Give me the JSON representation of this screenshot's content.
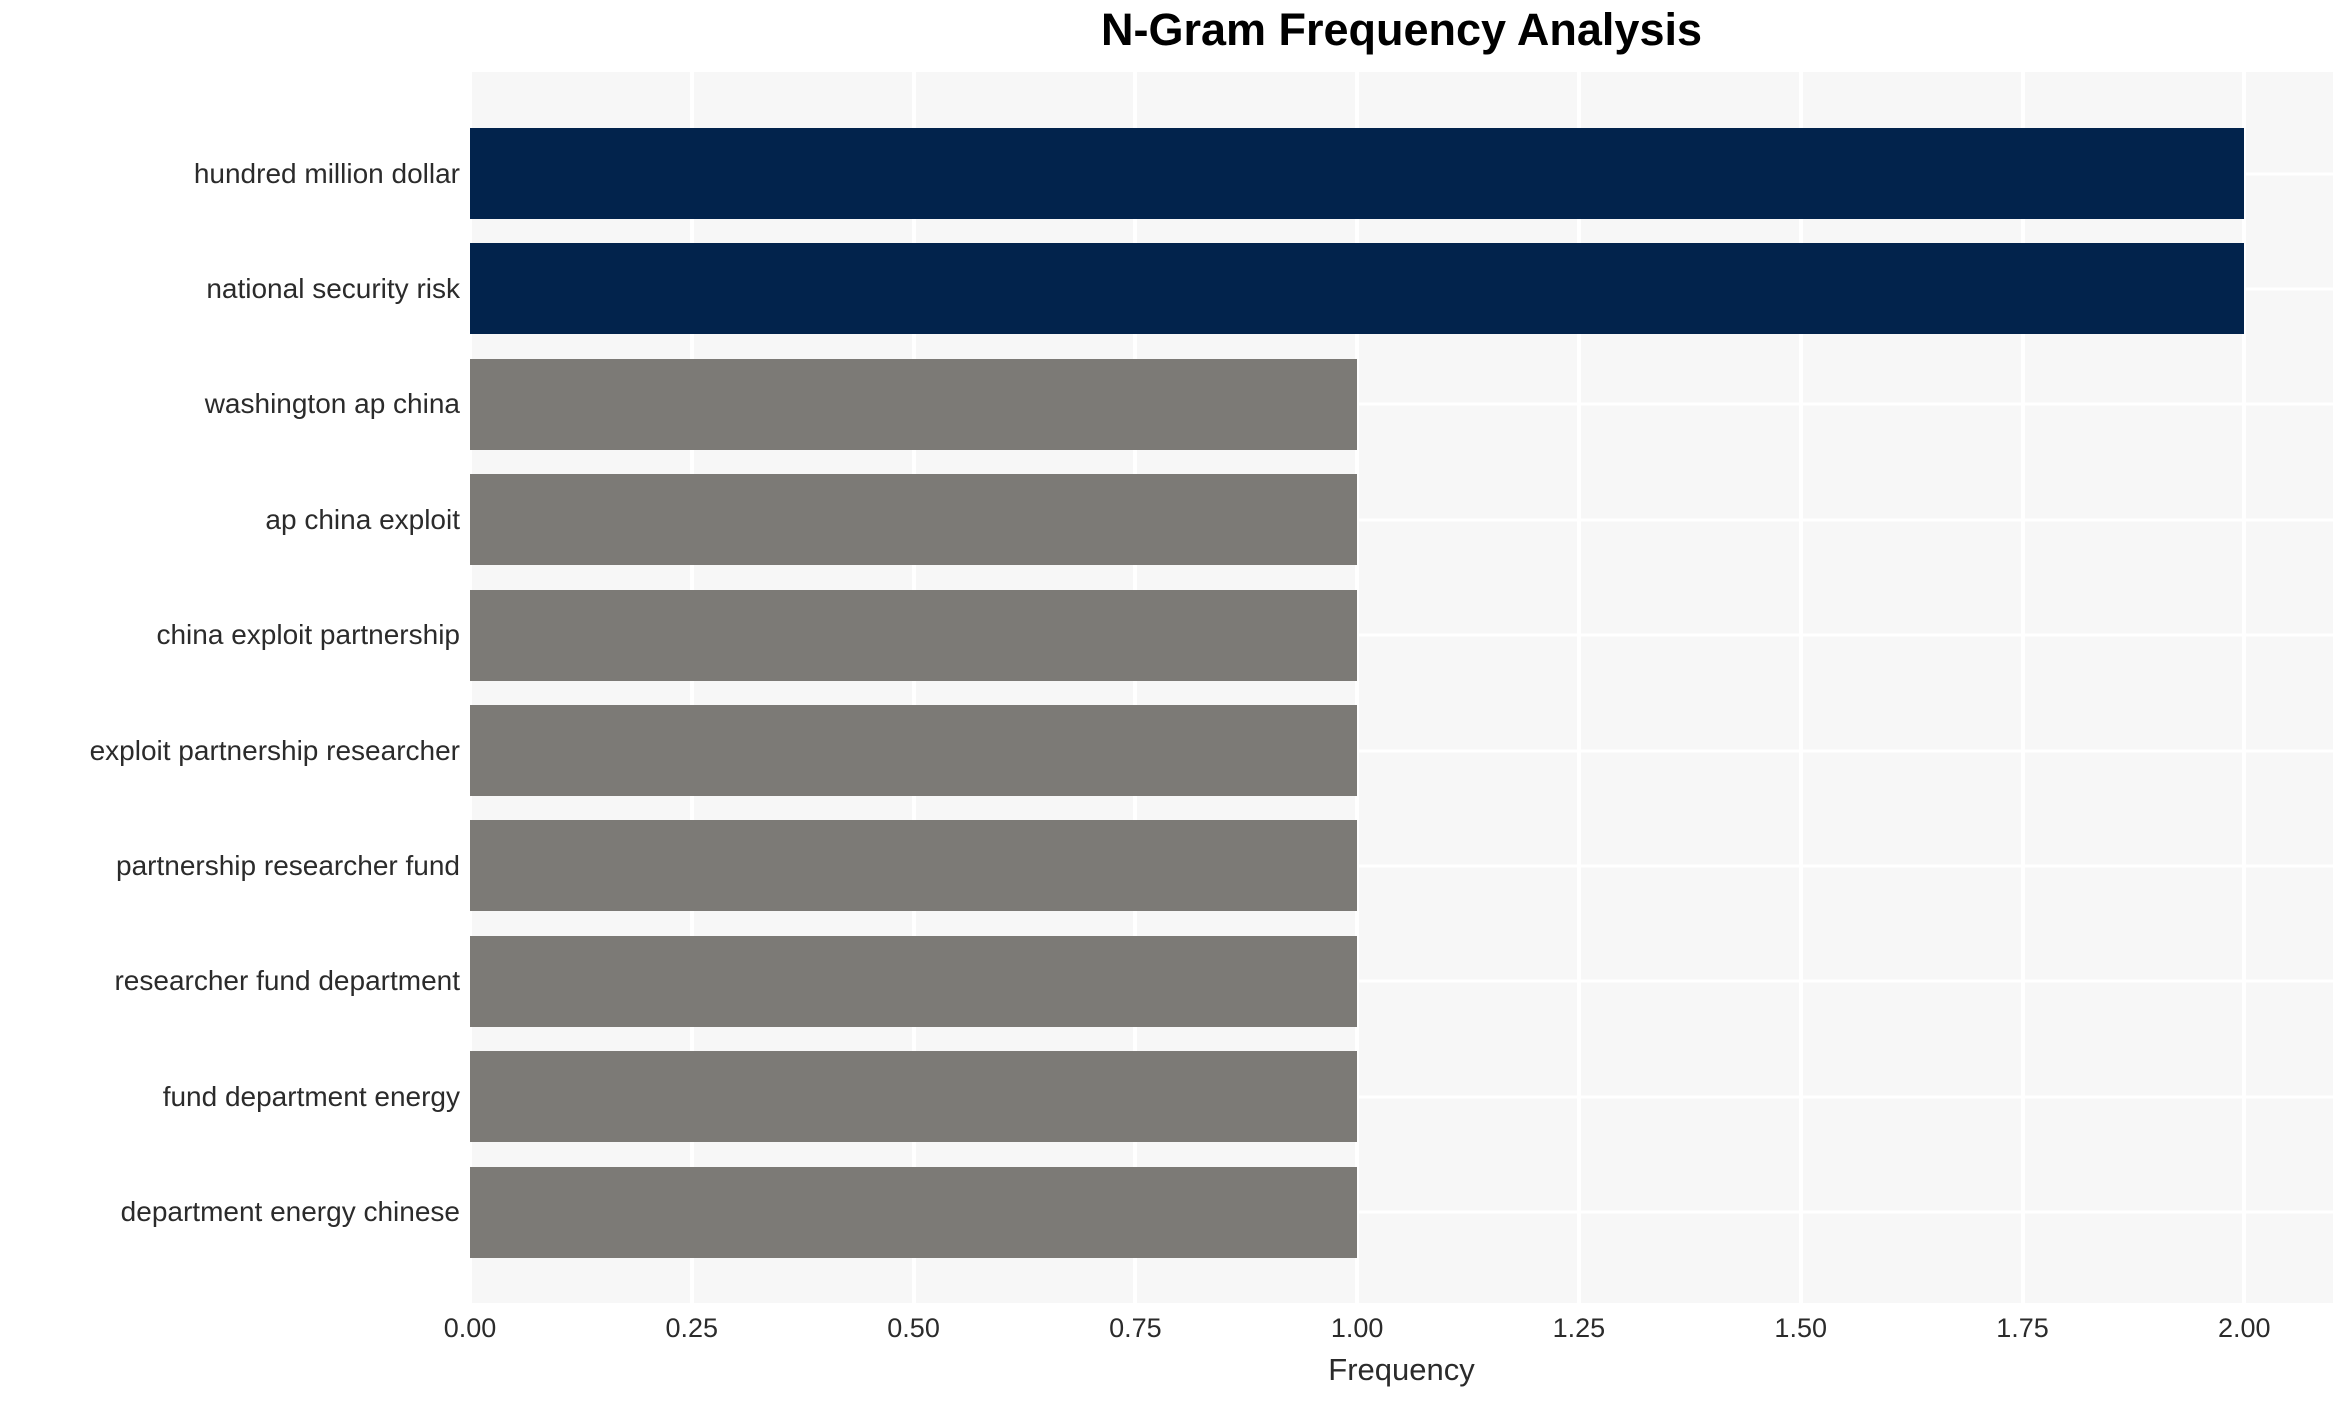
{
  "page": {
    "background": "#ffffff"
  },
  "chart_data": {
    "type": "bar",
    "orientation": "horizontal",
    "title": "N-Gram Frequency Analysis",
    "xlabel": "Frequency",
    "ylabel": "",
    "categories": [
      "hundred million dollar",
      "national security risk",
      "washington ap china",
      "ap china exploit",
      "china exploit partnership",
      "exploit partnership researcher",
      "partnership researcher fund",
      "researcher fund department",
      "fund department energy",
      "department energy chinese"
    ],
    "values": [
      2,
      2,
      1,
      1,
      1,
      1,
      1,
      1,
      1,
      1
    ],
    "bar_colors": [
      "#02234c",
      "#02234c",
      "#7c7a76",
      "#7c7a76",
      "#7c7a76",
      "#7c7a76",
      "#7c7a76",
      "#7c7a76",
      "#7c7a76",
      "#7c7a76"
    ],
    "xlim": [
      0,
      2.1
    ],
    "xticks": [
      0,
      0.25,
      0.5,
      0.75,
      1.0,
      1.25,
      1.5,
      1.75,
      2.0
    ],
    "xtick_labels": [
      "0.00",
      "0.25",
      "0.50",
      "0.75",
      "1.00",
      "1.25",
      "1.50",
      "1.75",
      "2.00"
    ],
    "grid": true,
    "legend": false,
    "colors": {
      "highlight_bar": "#02234c",
      "default_bar": "#7c7a76",
      "plot_background": "#f7f7f7",
      "grid_line": "#ffffff",
      "tick_text": "#2b2b2b",
      "title_text": "#000000"
    }
  }
}
